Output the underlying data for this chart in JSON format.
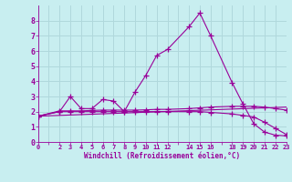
{
  "background_color": "#c8eef0",
  "grid_color": "#b0d8dc",
  "line_color": "#990099",
  "xlabel": "Windchill (Refroidissement éolien,°C)",
  "xlim": [
    0,
    23
  ],
  "ylim": [
    0,
    9
  ],
  "xticks_major": [
    0,
    1,
    2,
    3,
    4,
    5,
    6,
    7,
    8,
    9,
    10,
    11,
    12,
    13,
    14,
    15,
    16,
    17,
    18,
    19,
    20,
    21,
    22,
    23
  ],
  "xtick_labels_pos": [
    0,
    2,
    3,
    4,
    5,
    6,
    7,
    8,
    9,
    10,
    11,
    12,
    14,
    15,
    16,
    18,
    19,
    20,
    21,
    22,
    23
  ],
  "yticks": [
    0,
    1,
    2,
    3,
    4,
    5,
    6,
    7,
    8
  ],
  "series": [
    {
      "x": [
        0,
        2,
        3,
        4,
        5,
        6,
        7,
        8,
        9,
        10,
        11,
        12,
        14,
        15,
        16,
        18,
        19,
        20,
        21,
        22,
        23
      ],
      "y": [
        1.7,
        2.0,
        3.0,
        2.2,
        2.2,
        2.8,
        2.7,
        2.0,
        3.3,
        4.4,
        5.7,
        6.1,
        7.6,
        8.5,
        7.0,
        3.9,
        2.5,
        1.2,
        0.65,
        0.45,
        0.4
      ],
      "marker": "+"
    },
    {
      "x": [
        0,
        2,
        3,
        4,
        5,
        6,
        7,
        8,
        9,
        10,
        11,
        12,
        14,
        15,
        16,
        18,
        19,
        20,
        21,
        22,
        23
      ],
      "y": [
        1.7,
        2.05,
        2.05,
        2.05,
        2.08,
        2.1,
        2.1,
        2.1,
        2.1,
        2.12,
        2.15,
        2.15,
        2.2,
        2.25,
        2.3,
        2.35,
        2.35,
        2.35,
        2.3,
        2.2,
        2.1
      ],
      "marker": "+"
    },
    {
      "x": [
        0,
        23
      ],
      "y": [
        1.7,
        2.3
      ],
      "marker": null
    },
    {
      "x": [
        0,
        2,
        3,
        4,
        5,
        6,
        7,
        8,
        9,
        10,
        11,
        12,
        14,
        15,
        16,
        18,
        19,
        20,
        21,
        22,
        23
      ],
      "y": [
        1.7,
        2.0,
        2.0,
        2.0,
        2.0,
        2.0,
        2.0,
        2.0,
        2.0,
        2.0,
        2.0,
        2.0,
        2.0,
        2.0,
        1.95,
        1.85,
        1.75,
        1.65,
        1.3,
        0.9,
        0.5
      ],
      "marker": "+"
    }
  ]
}
